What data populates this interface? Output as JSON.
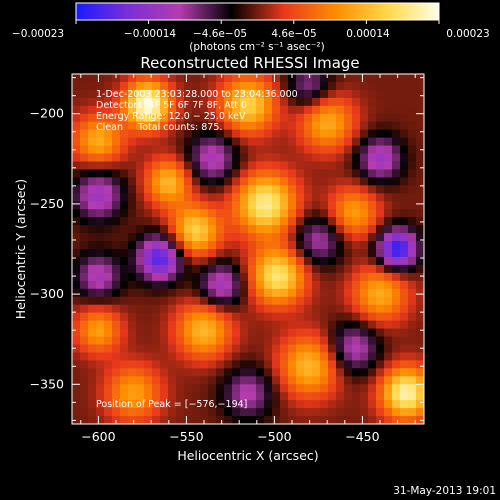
{
  "chart_data": {
    "type": "heatmap",
    "title": "Reconstructed RHESSI Image",
    "xlabel": "Heliocentric X (arcsec)",
    "ylabel": "Heliocentric Y (arcsec)",
    "xlim": [
      -615,
      -415
    ],
    "ylim": [
      -372,
      -178
    ],
    "x_ticks": [
      -600,
      -550,
      -500,
      -450
    ],
    "x_tick_labels": [
      "−600",
      "−550",
      "−500",
      "−450"
    ],
    "y_ticks": [
      -200,
      -250,
      -300,
      -350
    ],
    "y_tick_labels": [
      "−200",
      "−250",
      "−300",
      "−350"
    ],
    "colorbar": {
      "range": [
        -0.00023,
        0.00023
      ],
      "tick_labels": [
        "−0.00023",
        "−0.00014",
        "−4.6e−05",
        "4.6e−05",
        "0.00014",
        "0.00023"
      ],
      "units_label": "(photons cm⁻² s⁻¹ asec⁻²)",
      "colors": [
        "#1a1aff",
        "#7a2fd8",
        "#b43cae",
        "#000000",
        "#e8381c",
        "#ff8c00",
        "#ffd84a",
        "#ffffe8"
      ]
    },
    "annotations": [
      "1-Dec-2003 23:03:28.000 to 23:04:36.000",
      "Detectors: 4F 5F 6F 7F 8F, Att 0",
      "Energy Range: 12.0 − 25.0 keV",
      "Clean     Total counts: 875."
    ],
    "peak_label": "Position of Peak = [−576,−194]",
    "peak_position": [
      -576,
      -194
    ],
    "blobs": [
      {
        "x": -572,
        "y": -195,
        "v": 1.0,
        "s": 9
      },
      {
        "x": -515,
        "y": -195,
        "v": 0.7,
        "s": 11
      },
      {
        "x": -470,
        "y": -205,
        "v": 0.55,
        "s": 11
      },
      {
        "x": -600,
        "y": -215,
        "v": 0.55,
        "s": 10
      },
      {
        "x": -505,
        "y": -250,
        "v": 0.85,
        "s": 12
      },
      {
        "x": -498,
        "y": -290,
        "v": 0.8,
        "s": 11
      },
      {
        "x": -545,
        "y": -265,
        "v": 0.7,
        "s": 10
      },
      {
        "x": -560,
        "y": -238,
        "v": 0.6,
        "s": 9
      },
      {
        "x": -540,
        "y": -320,
        "v": 0.6,
        "s": 11
      },
      {
        "x": -455,
        "y": -255,
        "v": 0.5,
        "s": 10
      },
      {
        "x": -440,
        "y": -300,
        "v": 0.55,
        "s": 11
      },
      {
        "x": -425,
        "y": -355,
        "v": 0.9,
        "s": 10
      },
      {
        "x": -480,
        "y": -340,
        "v": 0.6,
        "s": 12
      },
      {
        "x": -580,
        "y": -355,
        "v": 0.5,
        "s": 11
      },
      {
        "x": -600,
        "y": -320,
        "v": 0.5,
        "s": 9
      },
      {
        "x": -565,
        "y": -280,
        "v": -0.85,
        "s": 9
      },
      {
        "x": -600,
        "y": -245,
        "v": -0.55,
        "s": 10
      },
      {
        "x": -535,
        "y": -225,
        "v": -0.5,
        "s": 10
      },
      {
        "x": -530,
        "y": -295,
        "v": -0.55,
        "s": 9
      },
      {
        "x": -475,
        "y": -270,
        "v": -0.45,
        "s": 10
      },
      {
        "x": -430,
        "y": -275,
        "v": -0.95,
        "s": 8
      },
      {
        "x": -440,
        "y": -225,
        "v": -0.55,
        "s": 9
      },
      {
        "x": -455,
        "y": -330,
        "v": -0.5,
        "s": 10
      },
      {
        "x": -600,
        "y": -290,
        "v": -0.5,
        "s": 9
      },
      {
        "x": -515,
        "y": -355,
        "v": -0.45,
        "s": 10
      },
      {
        "x": -480,
        "y": -185,
        "v": -0.4,
        "s": 9
      }
    ]
  },
  "footer": {
    "timestamp": "31-May-2013 19:01"
  }
}
